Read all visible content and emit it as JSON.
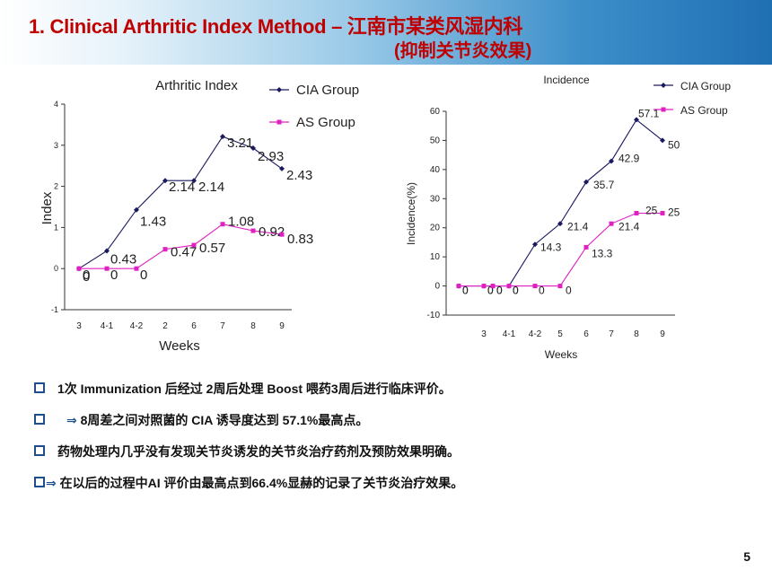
{
  "title": {
    "line1": "1. Clinical Arthritic Index Method – 江南市某类风湿内科",
    "line2": "(抑制关节炎效果)"
  },
  "bullets": [
    {
      "arrow": "",
      "text": "1次 Immunization 后经过 2周后处理 Boost 喂药3周后进行临床评价。"
    },
    {
      "arrow": "⇒",
      "text": "8周差之间对照菌的 CIA 诱导度达到 57.1%最高点。"
    },
    {
      "arrow": "",
      "text": "药物处理内几乎没有发现关节炎诱发的关节炎治疗药剂及预防效果明确。"
    },
    {
      "arrow": "⇒",
      "text": "在以后的过程中AI  评价由最高点到66.4%显赫的记录了关节炎治疗效果。"
    }
  ],
  "page_number": "5",
  "colors": {
    "cia": "#1a1a5e",
    "as": "#e020c0",
    "title": "#c00000",
    "checkbox": "#1f4e8c"
  },
  "chart_data": [
    {
      "type": "line",
      "title": "Arthritic Index",
      "xlabel": "Weeks",
      "ylabel": "Index",
      "categories": [
        "3",
        "4-1",
        "4-2",
        "2",
        "6",
        "7",
        "8",
        "9"
      ],
      "ylim": [
        -1,
        4
      ],
      "yticks": [
        -1,
        0,
        1,
        2,
        3,
        4
      ],
      "legend": "top-right",
      "grid": false,
      "series": [
        {
          "name": "CIA Group",
          "values": [
            0,
            0.43,
            1.43,
            2.14,
            2.14,
            3.21,
            2.93,
            2.43
          ],
          "labels": [
            "0",
            "0.43",
            "1.43",
            "2.14",
            "2.14",
            "3.21",
            "2.93",
            "2.43"
          ]
        },
        {
          "name": "AS Group",
          "values": [
            0,
            0,
            0,
            0.47,
            0.57,
            1.08,
            0.92,
            0.83
          ],
          "labels": [
            "0",
            "0",
            "0",
            "0.47",
            "0.57",
            "1.08",
            "0.92",
            "0.83"
          ]
        }
      ]
    },
    {
      "type": "line",
      "title": "Incidence",
      "xlabel": "Weeks",
      "ylabel": "Incidence(%)",
      "categories": [
        "",
        "",
        "3",
        "4-1",
        "4-2",
        "5",
        "6",
        "7",
        "8",
        "9"
      ],
      "ylim": [
        -10,
        60
      ],
      "yticks": [
        -10,
        0,
        10,
        20,
        30,
        40,
        50,
        60
      ],
      "legend": "top-right",
      "grid": false,
      "series": [
        {
          "name": "CIA Group",
          "values": [
            0,
            0,
            0,
            0,
            14.3,
            21.4,
            35.7,
            42.9,
            57.1,
            50
          ],
          "labels": [
            "0",
            "0",
            "0",
            "0",
            "14.3",
            "21.4",
            "35.7",
            "42.9",
            "57.1",
            "50"
          ]
        },
        {
          "name": "AS Group",
          "values": [
            0,
            0,
            0,
            0,
            0,
            0,
            13.3,
            21.4,
            25,
            25
          ],
          "labels": [
            "0",
            "0",
            "0",
            "0",
            "0",
            "0",
            "13.3",
            "21.4",
            "25",
            "25"
          ]
        }
      ]
    }
  ]
}
